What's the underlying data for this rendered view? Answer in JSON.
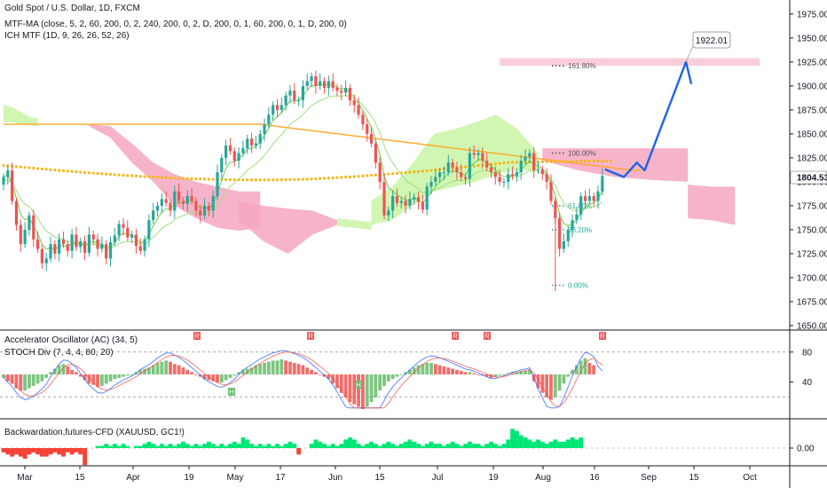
{
  "header": {
    "title": "Gold Spot / U.S. Dollar, 1D, FXCM",
    "ind1": "MTF-MA (close, 5, 2, 60, 200, 0, 2, 240, 200, 0, 2, D, 200, 0, 1, 60, 200, 0, 1, D, 200, 0)",
    "ind2": "ICH MTF (1D, 9, 26, 26, 52, 26)"
  },
  "pane2": {
    "label1": "Accelerator Oscillator (AC) (34, 5)",
    "label2": "STOCH Div (7, 4, 4, 80, 20)",
    "ticks": [
      "80",
      "40"
    ],
    "badge_letter_top": "R",
    "badge_letter_bottom": "H"
  },
  "pane3": {
    "label": "Backwardation,futures-CFD (XAUUSD, GC1!)",
    "ticks": [
      "0.00"
    ]
  },
  "colors": {
    "up": "#26a69a",
    "down": "#ef5350",
    "cloud_green": "#c8f5a5",
    "cloud_pink": "#f5a6c0",
    "ma_orange": "#ffa726",
    "ma_yellow": "#f2b818",
    "tenkan": "#66d04a",
    "projection": "#1e63e8"
  },
  "target_box": {
    "value": "1922.01"
  },
  "fib_labels": [
    "161.80%",
    "100.00%",
    "61.80%",
    "38.20%",
    "0.00%"
  ],
  "chart_data": {
    "type": "candlestick",
    "title": "Gold Spot / U.S. Dollar, 1D, FXCM",
    "y_ticks": [
      1975,
      1950,
      1925,
      1900,
      1875,
      1850,
      1825,
      1800,
      1775,
      1750,
      1725,
      1700,
      1675,
      1650
    ],
    "ylim": [
      1650,
      1985
    ],
    "last_price": "1804.53",
    "x_ticks": [
      "Mar",
      "15",
      "Apr",
      "19",
      "May",
      "17",
      "Jun",
      "15",
      "Jul",
      "19",
      "Aug",
      "16",
      "Sep",
      "15",
      "Oct"
    ],
    "close_series": [
      1805,
      1812,
      1780,
      1755,
      1735,
      1750,
      1765,
      1740,
      1730,
      1715,
      1720,
      1735,
      1725,
      1740,
      1735,
      1728,
      1745,
      1732,
      1738,
      1726,
      1745,
      1740,
      1730,
      1735,
      1720,
      1737,
      1744,
      1756,
      1752,
      1742,
      1745,
      1733,
      1728,
      1740,
      1760,
      1770,
      1775,
      1782,
      1778,
      1770,
      1790,
      1780,
      1777,
      1785,
      1780,
      1770,
      1765,
      1775,
      1770,
      1785,
      1810,
      1825,
      1838,
      1832,
      1822,
      1830,
      1835,
      1845,
      1838,
      1840,
      1850,
      1860,
      1870,
      1880,
      1875,
      1880,
      1890,
      1895,
      1885,
      1885,
      1900,
      1905,
      1910,
      1900,
      1905,
      1898,
      1905,
      1898,
      1895,
      1893,
      1898,
      1885,
      1880,
      1870,
      1860,
      1850,
      1840,
      1820,
      1800,
      1765,
      1770,
      1785,
      1778,
      1780,
      1775,
      1782,
      1784,
      1779,
      1771,
      1795,
      1800,
      1805,
      1810,
      1810,
      1820,
      1815,
      1810,
      1805,
      1803,
      1830,
      1828,
      1830,
      1822,
      1815,
      1810,
      1805,
      1800,
      1800,
      1808,
      1806,
      1810,
      1822,
      1826,
      1830,
      1812,
      1813,
      1808,
      1800,
      1780,
      1762,
      1730,
      1738,
      1750,
      1760,
      1766,
      1785,
      1780,
      1785,
      1780,
      1790,
      1806
    ],
    "projection_path": [
      [
        1813,
        "Aug 20"
      ],
      [
        1805,
        "Aug 23"
      ],
      [
        1820,
        "Aug 25"
      ],
      [
        1812,
        "Aug 27"
      ],
      [
        1925,
        "Sep 13"
      ],
      [
        1900,
        "Sep 14"
      ]
    ],
    "ac_series": [
      -3,
      -6,
      -8,
      -12,
      -14,
      -14,
      -12,
      -10,
      -8,
      -6,
      -3,
      2,
      5,
      8,
      9,
      7,
      4,
      2,
      -2,
      -5,
      -8,
      -9,
      -11,
      -10,
      -8,
      -6,
      -4,
      -3,
      -2,
      -1,
      0,
      2,
      4,
      5,
      6,
      8,
      10,
      11,
      12,
      11,
      9,
      8,
      6,
      4,
      2,
      0,
      -2,
      -4,
      -5,
      -6,
      -7,
      -7,
      -5,
      -3,
      -1,
      2,
      4,
      5,
      6,
      8,
      9,
      10,
      11,
      12,
      12,
      13,
      12,
      11,
      10,
      9,
      8,
      6,
      4,
      2,
      0,
      -2,
      -4,
      -8,
      -12,
      -16,
      -20,
      -24,
      -26,
      -28,
      -30,
      -28,
      -24,
      -20,
      -14,
      -10,
      -6,
      -4,
      -2,
      0,
      2,
      4,
      6,
      8,
      9,
      10,
      10,
      9,
      8,
      7,
      6,
      5,
      4,
      3,
      2,
      2,
      1,
      0,
      -1,
      -2,
      -3,
      -2,
      -1,
      0,
      1,
      2,
      2,
      3,
      3,
      4,
      -6,
      -12,
      -16,
      -20,
      -22,
      -20,
      -14,
      -8,
      -2,
      4,
      8,
      12,
      14,
      10,
      8
    ],
    "backwardation_series": [
      -2,
      -3,
      -4,
      -3,
      -4,
      -5,
      -3,
      -2,
      -3,
      -4,
      -4,
      -3,
      -2,
      -3,
      -4,
      -2,
      -3,
      -2,
      -3,
      -8,
      0,
      0,
      1,
      1,
      2,
      1,
      2,
      1,
      2,
      1,
      0,
      1,
      1,
      2,
      3,
      2,
      1,
      2,
      1,
      2,
      1,
      2,
      3,
      2,
      1,
      2,
      1,
      2,
      3,
      2,
      1,
      2,
      1,
      2,
      3,
      2,
      5,
      4,
      2,
      1,
      2,
      1,
      2,
      1,
      2,
      1,
      2,
      3,
      2,
      -3,
      0,
      0,
      2,
      4,
      3,
      2,
      1,
      2,
      1,
      2,
      4,
      5,
      4,
      2,
      1,
      2,
      3,
      2,
      1,
      2,
      3,
      2,
      1,
      2,
      3,
      4,
      3,
      2,
      1,
      2,
      3,
      2,
      2,
      1,
      2,
      3,
      2,
      1,
      2,
      3,
      2,
      2,
      1,
      2,
      3,
      2,
      1,
      2,
      4,
      9,
      8,
      6,
      5,
      4,
      3,
      4,
      3,
      2,
      3,
      4,
      3,
      3,
      4,
      5,
      4,
      5
    ]
  }
}
